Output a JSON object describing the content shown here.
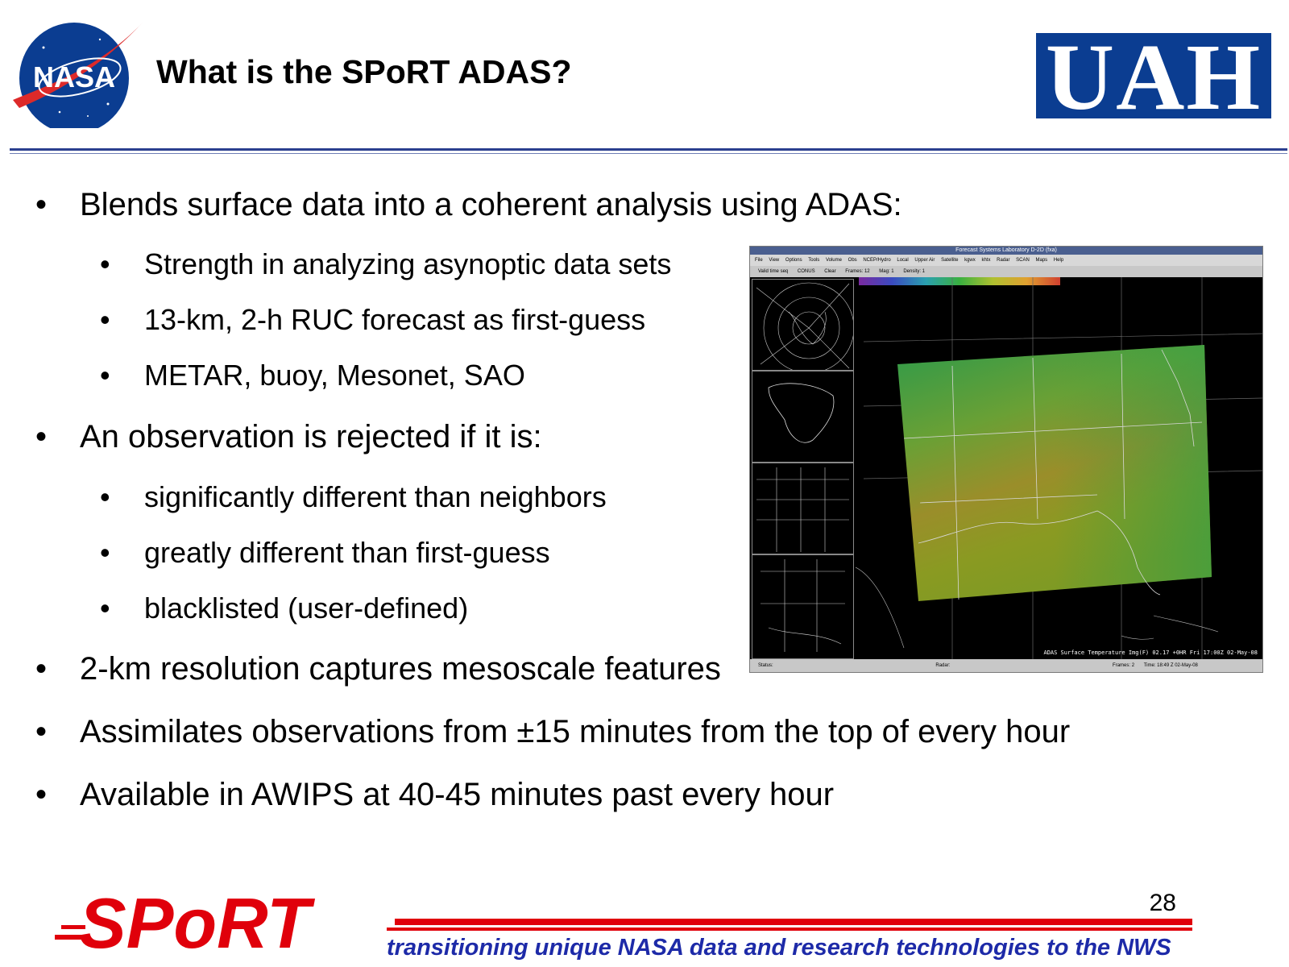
{
  "header": {
    "title": "What is the SPoRT ADAS?",
    "left_logo": "NASA",
    "right_logo": "UAH"
  },
  "bullets": [
    {
      "level": 1,
      "text": "Blends surface data into a coherent analysis using ADAS:"
    },
    {
      "level": 2,
      "text": "Strength in analyzing asynoptic data sets"
    },
    {
      "level": 2,
      "text": "13-km, 2-h RUC forecast as first-guess"
    },
    {
      "level": 2,
      "text": "METAR, buoy, Mesonet, SAO"
    },
    {
      "level": 1,
      "text": "An observation is rejected if it is:"
    },
    {
      "level": 2,
      "text": "significantly different than neighbors"
    },
    {
      "level": 2,
      "text": "greatly different than first-guess"
    },
    {
      "level": 2,
      "text": "blacklisted (user-defined)"
    },
    {
      "level": 1,
      "text": "2-km resolution captures mesoscale features"
    },
    {
      "level": 1,
      "text": "Assimilates observations from ±15 minutes from the top of every hour"
    },
    {
      "level": 1,
      "text": "Available in AWIPS at 40-45 minutes past every hour"
    }
  ],
  "screenshot": {
    "window_title": "Forecast Systems Laboratory D-2D (fxa)",
    "menu": [
      "File",
      "View",
      "Options",
      "Tools",
      "Volume",
      "Obs",
      "NCEP/Hydro",
      "Local",
      "Upper Air",
      "Satellite",
      "kgwx",
      "khtx",
      "Radar",
      "SCAN",
      "Maps",
      "Help"
    ],
    "toolbar": [
      "Valid time seq",
      "CONUS",
      "Clear",
      "Frames: 12",
      "Mag: 1",
      "Density: 1"
    ],
    "caption": "ADAS Surface Temperature Img(F)  02.17  +0HR Fri 17:00Z 02-May-08",
    "status": [
      "Status:",
      "Radar:",
      "Frames: 2",
      "Time: 18:49 Z 02-May-08"
    ]
  },
  "footer": {
    "page_number": "28",
    "tagline": "transitioning unique NASA data and research technologies to the NWS",
    "logo": "SPoRT"
  }
}
